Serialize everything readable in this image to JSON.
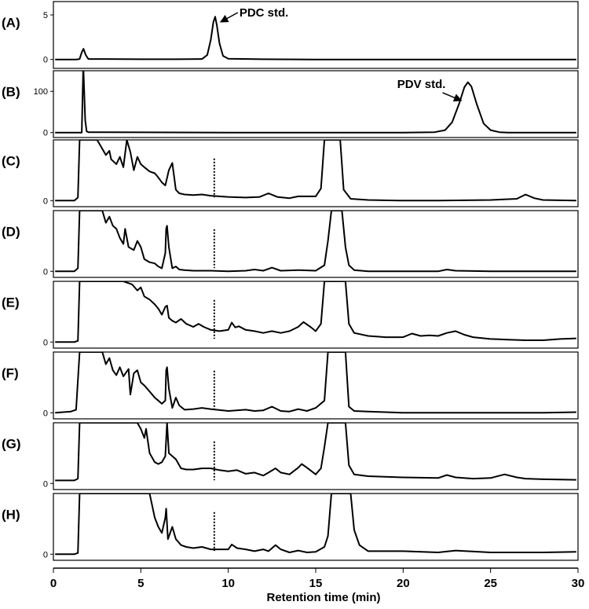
{
  "chart_data": {
    "type": "line",
    "xlabel": "Retention time (min)",
    "xlim": [
      0,
      30
    ],
    "xticks": [
      0,
      5,
      10,
      15,
      20,
      25,
      30
    ],
    "grid": false,
    "colors": {
      "trace": "#000000",
      "marker": "#000000"
    },
    "panels": [
      {
        "label": "(A)",
        "ylim": [
          -1,
          6.5
        ],
        "yticks": [
          0,
          5
        ],
        "annotations": [
          {
            "text": "PDC std.",
            "x": 9.2,
            "y": 5.0
          }
        ],
        "series": [
          {
            "x": [
              0.1,
              1.3,
              1.5,
              1.62,
              1.72,
              1.85,
              2.0,
              3,
              5,
              7,
              8.5,
              8.8,
              9.0,
              9.15,
              9.25,
              9.35,
              9.5,
              9.7,
              10.0,
              12,
              15,
              20,
              25,
              29.9
            ],
            "y": [
              0,
              0,
              0.05,
              0.8,
              1.2,
              0.5,
              0.05,
              0.05,
              0.02,
              0.02,
              0.05,
              0.5,
              2.2,
              4.2,
              4.8,
              3.8,
              1.8,
              0.4,
              0.08,
              0.02,
              0,
              0,
              0,
              0
            ]
          }
        ]
      },
      {
        "label": "(B)",
        "ylim": [
          -12,
          150
        ],
        "yticks": [
          0,
          100
        ],
        "annotations": [
          {
            "text": "PDV std.",
            "x": 23.6,
            "y": 112
          }
        ],
        "series": [
          {
            "x": [
              0.1,
              1.5,
              1.62,
              1.7,
              1.72,
              1.82,
              1.9,
              2.0,
              5,
              10,
              15,
              20,
              21.8,
              22.4,
              22.8,
              23.2,
              23.5,
              23.7,
              23.9,
              24.2,
              24.6,
              25.0,
              25.5,
              26.0,
              29.9
            ],
            "y": [
              0,
              0,
              0,
              150,
              150,
              30,
              3,
              1,
              0.5,
              0,
              0,
              0,
              1,
              6,
              25,
              70,
              110,
              122,
              112,
              70,
              22,
              6,
              1,
              0,
              0
            ]
          }
        ]
      },
      {
        "label": "(C)",
        "ylim": [
          -1,
          10
        ],
        "yticks": [
          0
        ],
        "dashed_x": 9.2,
        "series": [
          {
            "x": [
              0.1,
              1.2,
              1.4,
              1.5,
              1.6,
              2.5,
              3.0,
              3.2,
              3.3,
              3.6,
              3.8,
              4.0,
              4.2,
              4.4,
              4.6,
              4.8,
              5.0,
              5.2,
              5.5,
              5.8,
              6.0,
              6.2,
              6.4,
              6.6,
              6.8,
              7.0,
              7.2,
              7.5,
              8.0,
              8.5,
              9.0,
              9.5,
              10,
              11,
              11.8,
              12.3,
              12.8,
              13.5,
              14,
              15,
              15.3,
              15.5,
              15.7,
              16.2,
              16.4,
              16.6,
              17,
              18,
              20,
              22,
              25,
              26.5,
              27.0,
              27.5,
              28,
              29.9
            ],
            "y": [
              0,
              0,
              0.5,
              10,
              10,
              10,
              7.5,
              8.2,
              6.8,
              6,
              7.2,
              5.5,
              10,
              8,
              5,
              7.2,
              6,
              5.5,
              4.8,
              4.5,
              3.8,
              3,
              2.5,
              5,
              6.2,
              1.8,
              1.2,
              1,
              0.9,
              1,
              0.8,
              0.7,
              0.6,
              0.5,
              0.6,
              1.2,
              0.6,
              0.4,
              0.7,
              0.7,
              2,
              10,
              10,
              10,
              10,
              1.8,
              0.3,
              0.1,
              0,
              0,
              0.1,
              0.3,
              1.0,
              0.4,
              0.1,
              0
            ]
          }
        ]
      },
      {
        "label": "(D)",
        "ylim": [
          -1,
          10
        ],
        "yticks": [
          0
        ],
        "dashed_x": 9.2,
        "series": [
          {
            "x": [
              0.1,
              1.2,
              1.4,
              1.5,
              1.6,
              2.8,
              3.0,
              3.2,
              3.4,
              3.6,
              3.8,
              4.0,
              4.1,
              4.3,
              4.6,
              4.8,
              5.0,
              5.2,
              5.5,
              5.8,
              6.0,
              6.2,
              6.4,
              6.45,
              6.5,
              6.6,
              6.8,
              7.0,
              7.2,
              7.5,
              8.0,
              9,
              10,
              11,
              11.5,
              12,
              12.5,
              13,
              14,
              15,
              15.5,
              15.7,
              15.9,
              16.5,
              16.7,
              16.9,
              17.2,
              18,
              20,
              22,
              22.5,
              23,
              25,
              29.9
            ],
            "y": [
              0,
              0,
              0.5,
              10,
              10,
              10,
              8,
              9,
              7.5,
              7,
              5.5,
              4.5,
              7,
              4,
              3.5,
              5,
              4,
              2,
              1.5,
              1.3,
              0.8,
              0.5,
              3,
              7,
              7.5,
              4,
              0.5,
              0.8,
              0.3,
              0.2,
              0.1,
              0.1,
              0,
              0.1,
              0.3,
              0.1,
              0.6,
              0.1,
              0.2,
              0.1,
              1,
              5,
              10,
              10,
              4,
              1,
              0.2,
              0,
              0,
              0,
              0.3,
              0.1,
              0,
              0
            ]
          }
        ]
      },
      {
        "label": "(E)",
        "ylim": [
          -1,
          10
        ],
        "yticks": [
          0
        ],
        "dashed_x": 9.2,
        "series": [
          {
            "x": [
              0.1,
              1.2,
              1.4,
              1.5,
              1.6,
              4.0,
              4.5,
              4.8,
              5.0,
              5.2,
              5.5,
              5.8,
              6.0,
              6.2,
              6.4,
              6.5,
              6.6,
              6.8,
              7.0,
              7.3,
              7.6,
              8.0,
              8.3,
              8.6,
              9,
              9.5,
              10,
              10.2,
              10.4,
              10.6,
              11,
              11.5,
              12,
              12.5,
              13,
              13.5,
              14,
              14.3,
              14.7,
              15,
              15.3,
              15.5,
              15.7,
              16.5,
              16.7,
              16.9,
              17.2,
              18,
              19,
              20,
              20.5,
              21,
              21.5,
              22,
              22.5,
              23,
              23.5,
              24,
              25,
              26,
              27,
              28,
              29,
              29.9
            ],
            "y": [
              0,
              0,
              0.2,
              10,
              10,
              10,
              9.5,
              8.5,
              9,
              7.5,
              7,
              6.2,
              5.5,
              4.5,
              5.8,
              6,
              4,
              3.5,
              3.2,
              3.8,
              3,
              2.5,
              3,
              2.5,
              2,
              1.8,
              2,
              3.2,
              2.4,
              2.6,
              2,
              1.8,
              1.5,
              1.8,
              1.5,
              1.8,
              2.5,
              3.3,
              2.5,
              1.8,
              3,
              10,
              10,
              10,
              10,
              3,
              1.5,
              1,
              0.8,
              0.8,
              1.4,
              1,
              1.1,
              1,
              1.5,
              1.8,
              1.2,
              0.8,
              0.5,
              0.4,
              0.3,
              0.3,
              0.5,
              0.6
            ]
          }
        ]
      },
      {
        "label": "(F)",
        "ylim": [
          -1,
          10
        ],
        "yticks": [
          0
        ],
        "dashed_x": 9.2,
        "series": [
          {
            "x": [
              0.1,
              1.0,
              1.3,
              1.5,
              1.6,
              2.8,
              3.0,
              3.2,
              3.4,
              3.6,
              3.8,
              4.0,
              4.3,
              4.4,
              4.6,
              4.8,
              5.0,
              5.2,
              5.5,
              5.8,
              6.0,
              6.2,
              6.4,
              6.45,
              6.5,
              6.6,
              6.8,
              7.0,
              7.2,
              7.5,
              8.0,
              8.5,
              9,
              10,
              11,
              11.5,
              12,
              12.5,
              13,
              13.5,
              14,
              14.5,
              15,
              15.5,
              15.7,
              15.9,
              16.5,
              16.7,
              16.9,
              17.2,
              18,
              19,
              20,
              22,
              25,
              28,
              29.9
            ],
            "y": [
              0,
              0.2,
              0.5,
              10,
              10,
              10,
              8,
              9,
              7,
              6.2,
              7.5,
              6,
              7.2,
              3,
              6.5,
              7,
              5,
              4.5,
              3.5,
              2.5,
              2,
              1.5,
              2,
              7,
              7.5,
              4,
              0.8,
              2.5,
              1.2,
              0.5,
              0.6,
              0.8,
              0.6,
              0.3,
              0.5,
              0.3,
              0.4,
              1,
              0.3,
              0.2,
              0.6,
              0.3,
              0.8,
              2,
              10,
              10,
              10,
              10,
              1,
              0.3,
              0.2,
              0.1,
              0,
              0,
              0,
              0,
              0.1
            ]
          }
        ]
      },
      {
        "label": "(G)",
        "ylim": [
          -1,
          10
        ],
        "yticks": [
          0
        ],
        "dashed_x": 9.2,
        "series": [
          {
            "x": [
              0.1,
              1.2,
              1.4,
              1.5,
              1.6,
              4.8,
              5.0,
              5.2,
              5.3,
              5.5,
              5.8,
              6.0,
              6.2,
              6.4,
              6.5,
              6.6,
              6.8,
              7.0,
              7.3,
              7.6,
              8.0,
              8.5,
              9,
              9.5,
              10,
              10.5,
              11,
              11.5,
              12,
              12.3,
              12.7,
              13,
              13.5,
              14,
              14.2,
              14.5,
              15,
              15.3,
              15.5,
              15.7,
              15.9,
              16.5,
              16.7,
              16.9,
              17.2,
              18,
              20,
              22,
              22.5,
              23,
              24,
              25,
              25.8,
              26.5,
              27,
              28,
              29.9
            ],
            "y": [
              0.5,
              0.5,
              0.8,
              10,
              10,
              10,
              9,
              7.5,
              9,
              5,
              3.5,
              3.2,
              3.5,
              4.5,
              10,
              5,
              4.5,
              4,
              2.5,
              2.3,
              2.3,
              2.5,
              2.5,
              2.2,
              2,
              2.2,
              1.6,
              1.8,
              1.3,
              1.8,
              2.5,
              1.8,
              1.5,
              2.6,
              3.2,
              2.6,
              1.5,
              2.5,
              6,
              10,
              10,
              10,
              10,
              3,
              1.5,
              1.2,
              1,
              0.9,
              1.4,
              1,
              0.8,
              0.9,
              1.5,
              1,
              0.8,
              0.7,
              0.6
            ]
          }
        ]
      },
      {
        "label": "(H)",
        "ylim": [
          -1,
          10
        ],
        "yticks": [
          0
        ],
        "dashed_x": 9.2,
        "series": [
          {
            "x": [
              0.1,
              1.2,
              1.4,
              1.5,
              1.6,
              5.5,
              5.8,
              6.0,
              6.2,
              6.4,
              6.45,
              6.55,
              6.8,
              7.0,
              7.3,
              7.6,
              8.0,
              8.5,
              9,
              9.5,
              10,
              10.2,
              10.5,
              11,
              11.5,
              12,
              12.3,
              12.7,
              13,
              13.5,
              14,
              14.5,
              15,
              15.5,
              15.7,
              15.9,
              16.1,
              16.8,
              17.0,
              17.2,
              17.5,
              18,
              20,
              22,
              23,
              25,
              28,
              29.9
            ],
            "y": [
              0,
              0,
              0.2,
              10,
              10,
              10,
              6,
              4.5,
              3.5,
              6,
              7.5,
              2.5,
              4.5,
              2.5,
              1.5,
              1.2,
              1,
              1.2,
              0.8,
              0.8,
              0.8,
              1.6,
              1,
              0.8,
              0.5,
              0.8,
              0.5,
              1.5,
              0.8,
              0.3,
              0.6,
              0.3,
              0.4,
              1.2,
              3,
              10,
              10,
              10,
              10,
              4,
              1.5,
              0.5,
              0.5,
              0.3,
              0.6,
              0.3,
              0.3,
              0.4
            ]
          }
        ]
      }
    ]
  }
}
